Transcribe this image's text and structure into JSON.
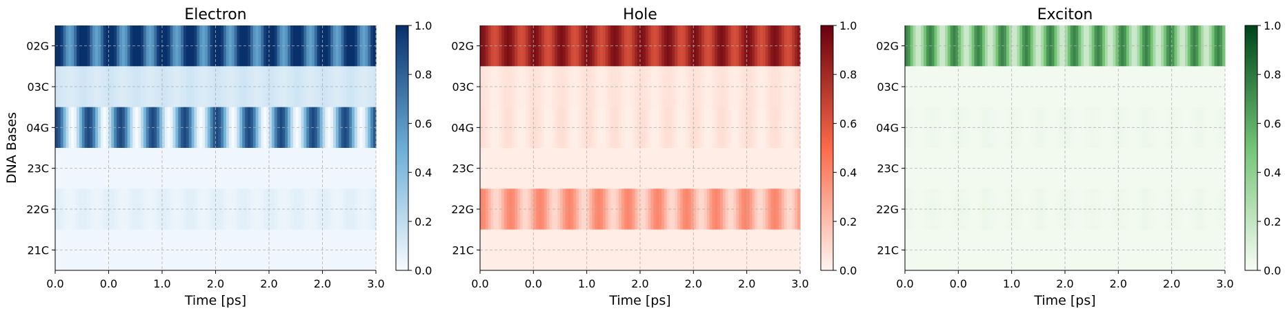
{
  "chart_data": [
    {
      "type": "heatmap",
      "title": "Electron",
      "colormap": "Blues",
      "colors": {
        "low": "#f7fbff",
        "mid": "#6baed6",
        "high": "#08306b"
      },
      "xlabel": "Time [ps]",
      "ylabel": "DNA Bases",
      "x_tick_labels": [
        "0.0",
        "0.0",
        "1.0",
        "2.0",
        "2.0",
        "2.0",
        "3.0"
      ],
      "y_tick_labels": [
        "02G",
        "03C",
        "04G",
        "23C",
        "22G",
        "21C"
      ],
      "colorbar_ticks": [
        "0.0",
        "0.2",
        "0.4",
        "0.6",
        "0.8",
        "1.0"
      ],
      "clim": [
        0,
        1
      ],
      "grid": true,
      "rows": [
        {
          "base": "02G",
          "base_level": 0.85,
          "amplitude": 0.3,
          "period": 10
        },
        {
          "base": "03C",
          "base_level": 0.12,
          "amplitude": 0.02,
          "period": 10
        },
        {
          "base": "04G",
          "base_level": 0.45,
          "amplitude": 0.45,
          "period": 12
        },
        {
          "base": "23C",
          "base_level": 0.03,
          "amplitude": 0.0,
          "period": 10
        },
        {
          "base": "22G",
          "base_level": 0.06,
          "amplitude": 0.02,
          "period": 10
        },
        {
          "base": "21C",
          "base_level": 0.03,
          "amplitude": 0.0,
          "period": 10
        }
      ]
    },
    {
      "type": "heatmap",
      "title": "Hole",
      "colormap": "Reds",
      "colors": {
        "low": "#fff5f0",
        "mid": "#fb6a4a",
        "high": "#67000d"
      },
      "xlabel": "Time [ps]",
      "ylabel": "",
      "x_tick_labels": [
        "0.0",
        "0.0",
        "1.0",
        "2.0",
        "2.0",
        "2.0",
        "3.0"
      ],
      "y_tick_labels": [
        "02G",
        "03C",
        "04G",
        "23C",
        "22G",
        "21C"
      ],
      "colorbar_ticks": [
        "0.0",
        "0.2",
        "0.4",
        "0.6",
        "0.8",
        "1.0"
      ],
      "clim": [
        0,
        1
      ],
      "grid": true,
      "rows": [
        {
          "base": "02G",
          "base_level": 0.78,
          "amplitude": 0.15,
          "period": 10
        },
        {
          "base": "03C",
          "base_level": 0.05,
          "amplitude": 0.02,
          "period": 10
        },
        {
          "base": "04G",
          "base_level": 0.05,
          "amplitude": 0.03,
          "period": 10
        },
        {
          "base": "23C",
          "base_level": 0.03,
          "amplitude": 0.0,
          "period": 10
        },
        {
          "base": "22G",
          "base_level": 0.25,
          "amplitude": 0.15,
          "period": 11
        },
        {
          "base": "21C",
          "base_level": 0.03,
          "amplitude": 0.0,
          "period": 10
        }
      ]
    },
    {
      "type": "heatmap",
      "title": "Exciton",
      "colormap": "Greens",
      "colors": {
        "low": "#f7fcf5",
        "mid": "#74c476",
        "high": "#00441b"
      },
      "xlabel": "Time [ps]",
      "ylabel": "",
      "x_tick_labels": [
        "0.0",
        "0.0",
        "1.0",
        "2.0",
        "2.0",
        "2.0",
        "3.0"
      ],
      "y_tick_labels": [
        "02G",
        "03C",
        "04G",
        "23C",
        "22G",
        "21C"
      ],
      "colorbar_ticks": [
        "0.0",
        "0.2",
        "0.4",
        "0.6",
        "0.8",
        "1.0"
      ],
      "clim": [
        0,
        1
      ],
      "grid": true,
      "rows": [
        {
          "base": "02G",
          "base_level": 0.45,
          "amplitude": 0.3,
          "period": 9
        },
        {
          "base": "03C",
          "base_level": 0.02,
          "amplitude": 0.0,
          "period": 10
        },
        {
          "base": "04G",
          "base_level": 0.03,
          "amplitude": 0.01,
          "period": 10
        },
        {
          "base": "23C",
          "base_level": 0.02,
          "amplitude": 0.0,
          "period": 10
        },
        {
          "base": "22G",
          "base_level": 0.03,
          "amplitude": 0.01,
          "period": 10
        },
        {
          "base": "21C",
          "base_level": 0.02,
          "amplitude": 0.0,
          "period": 10
        }
      ]
    }
  ]
}
